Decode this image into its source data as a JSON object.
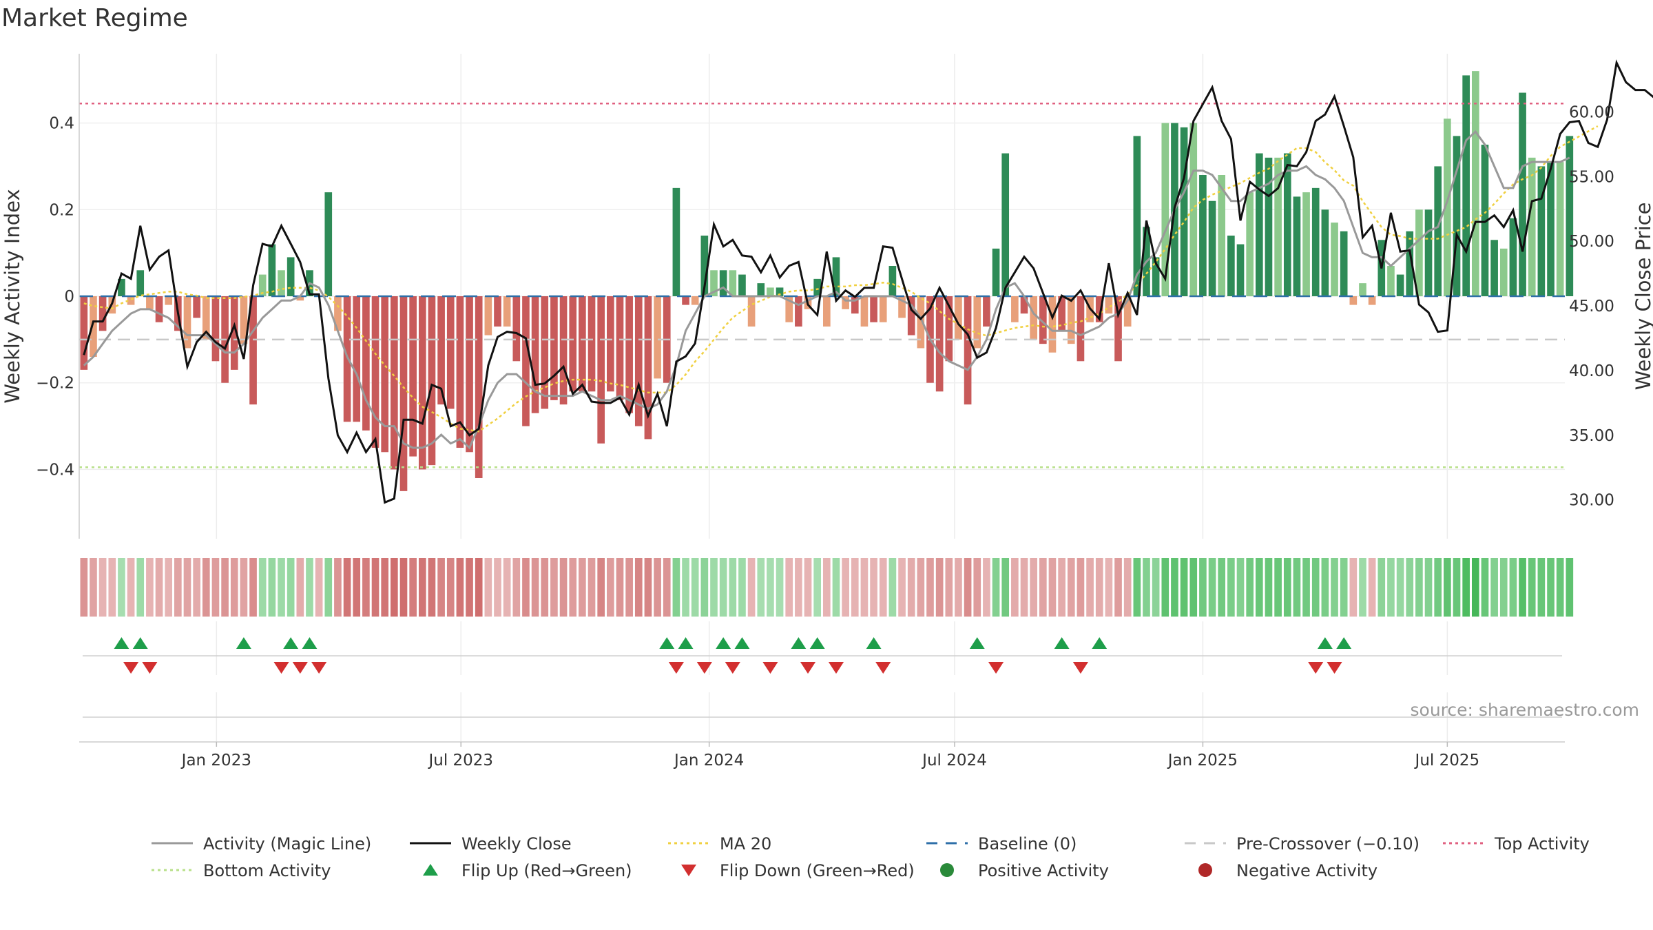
{
  "chart_data": {
    "type": "bar",
    "title": "Market Regime",
    "ylabel_left": "Weekly Activity Index",
    "ylabel_right": "Weekly Close Price",
    "ylim_left": [
      -0.56,
      0.56
    ],
    "ylim_right": [
      27.0,
      64.5
    ],
    "yticks_left": [
      0.4,
      0.2,
      0,
      -0.2,
      -0.4
    ],
    "yticks_left_labels": [
      "0.4",
      "0.2",
      "0",
      "−0.2",
      "−0.4"
    ],
    "yticks_right": [
      60,
      55,
      50,
      45,
      40,
      35,
      30
    ],
    "yticks_right_labels": [
      "60.00",
      "55.00",
      "50.00",
      "45.00",
      "40.00",
      "35.00",
      "30.00"
    ],
    "xlim_week": [
      0,
      158
    ],
    "x_tick_labels": [
      "Jan 2023",
      "Jul 2023",
      "Jan 2024",
      "Jul 2024",
      "Jan 2025",
      "Jul 2025"
    ],
    "x_tick_weeks": [
      14.6,
      40.6,
      67,
      93.1,
      119.5,
      145.5
    ],
    "reference_lines": {
      "baseline": 0,
      "pre_crossover": -0.1,
      "top_activity": 0.445,
      "bottom_activity": -0.395
    },
    "activity_index": [
      -0.17,
      -0.14,
      -0.08,
      -0.04,
      0.04,
      -0.02,
      0.06,
      -0.03,
      -0.06,
      -0.02,
      -0.08,
      -0.12,
      -0.05,
      -0.1,
      -0.15,
      -0.2,
      -0.17,
      -0.11,
      -0.25,
      0.05,
      0.12,
      0.06,
      0.09,
      -0.01,
      0.06,
      0.0,
      0.24,
      -0.08,
      -0.29,
      -0.29,
      -0.31,
      -0.35,
      -0.36,
      -0.4,
      -0.45,
      -0.37,
      -0.4,
      -0.39,
      -0.25,
      -0.26,
      -0.35,
      -0.36,
      -0.42,
      -0.09,
      -0.07,
      -0.07,
      -0.15,
      -0.3,
      -0.27,
      -0.26,
      -0.24,
      -0.25,
      -0.22,
      -0.22,
      -0.22,
      -0.34,
      -0.22,
      -0.24,
      -0.27,
      -0.3,
      -0.33,
      -0.19,
      -0.2,
      0.25,
      -0.02,
      -0.02,
      0.14,
      0.06,
      0.06,
      0.06,
      0.05,
      -0.07,
      0.03,
      0.02,
      0.02,
      -0.06,
      -0.07,
      -0.03,
      0.04,
      -0.07,
      0.09,
      -0.03,
      -0.04,
      -0.07,
      -0.06,
      -0.06,
      0.07,
      -0.05,
      -0.09,
      -0.12,
      -0.2,
      -0.22,
      -0.15,
      -0.1,
      -0.25,
      -0.12,
      -0.07,
      0.11,
      0.33,
      -0.06,
      -0.04,
      -0.1,
      -0.11,
      -0.13,
      -0.08,
      -0.11,
      -0.15,
      -0.06,
      -0.06,
      -0.04,
      -0.15,
      -0.07,
      0.37,
      0.16,
      0.09,
      0.4,
      0.4,
      0.39,
      0.4,
      0.28,
      0.22,
      0.28,
      0.14,
      0.12,
      0.24,
      0.33,
      0.32,
      0.32,
      0.33,
      0.23,
      0.24,
      0.25,
      0.2,
      0.17,
      0.15,
      -0.02,
      0.03,
      -0.02,
      0.13,
      0.07,
      0.05,
      0.15,
      0.2,
      0.2,
      0.3,
      0.41,
      0.37,
      0.51,
      0.52,
      0.35,
      0.13,
      0.11,
      0.18,
      0.47,
      0.32,
      0.3,
      0.31,
      0.31,
      0.37
    ],
    "weekly_close": [
      41.2,
      43.8,
      43.8,
      45.2,
      47.5,
      47.1,
      51.2,
      47.8,
      48.8,
      49.3,
      44.5,
      40.3,
      42.2,
      43.0,
      42.2,
      41.7,
      43.5,
      40.9,
      46.6,
      49.8,
      49.6,
      51.2,
      49.8,
      48.4,
      45.9,
      45.9,
      39.4,
      35.0,
      33.7,
      35.2,
      33.7,
      34.7,
      29.8,
      30.1,
      36.2,
      36.2,
      35.9,
      38.9,
      38.6,
      35.7,
      36.0,
      35.0,
      35.5,
      40.4,
      42.6,
      43.0,
      42.9,
      42.5,
      38.9,
      39.0,
      39.6,
      40.3,
      38.2,
      38.9,
      37.6,
      37.5,
      37.5,
      37.9,
      36.6,
      38.9,
      36.5,
      38.2,
      35.7,
      40.7,
      41.1,
      42.1,
      46.5,
      51.3,
      49.6,
      50.1,
      48.9,
      48.8,
      47.6,
      48.9,
      47.2,
      48.1,
      48.4,
      45.1,
      44.3,
      49.2,
      45.4,
      46.2,
      45.7,
      46.4,
      46.4,
      49.6,
      49.5,
      47.1,
      44.7,
      44.0,
      44.8,
      46.4,
      45.0,
      43.6,
      42.8,
      41.0,
      41.4,
      43.3,
      46.4,
      47.6,
      48.8,
      47.9,
      46.0,
      44.1,
      45.8,
      45.4,
      46.2,
      44.8,
      44.0,
      48.3,
      44.3,
      46.0,
      44.3,
      51.6,
      48.3,
      47.1,
      52.6,
      54.9,
      59.3,
      60.6,
      61.9,
      59.3,
      57.9,
      51.6,
      54.6,
      54.0,
      53.5,
      54.1,
      55.9,
      55.8,
      56.9,
      59.3,
      59.8,
      61.2,
      58.9,
      56.5,
      50.3,
      51.2,
      47.9,
      52.2,
      49.2,
      49.3,
      45.1,
      44.5,
      43.0,
      43.1,
      50.5,
      49.2,
      51.5,
      51.5,
      52.0,
      51.1,
      52.4,
      49.2,
      53.1,
      53.3,
      55.6,
      58.3,
      59.2,
      59.3,
      57.6,
      57.3,
      59.4,
      63.8,
      62.3,
      61.7,
      61.7,
      61.1,
      61.1,
      61.1
    ],
    "activity_magic_line": [
      -0.16,
      -0.14,
      -0.11,
      -0.08,
      -0.06,
      -0.04,
      -0.03,
      -0.03,
      -0.04,
      -0.05,
      -0.07,
      -0.09,
      -0.09,
      -0.09,
      -0.11,
      -0.13,
      -0.13,
      -0.11,
      -0.08,
      -0.05,
      -0.03,
      -0.01,
      -0.01,
      0.0,
      0.03,
      0.02,
      -0.02,
      -0.08,
      -0.14,
      -0.18,
      -0.24,
      -0.28,
      -0.3,
      -0.3,
      -0.34,
      -0.35,
      -0.35,
      -0.34,
      -0.32,
      -0.34,
      -0.33,
      -0.35,
      -0.3,
      -0.24,
      -0.2,
      -0.18,
      -0.18,
      -0.2,
      -0.22,
      -0.23,
      -0.23,
      -0.23,
      -0.23,
      -0.22,
      -0.23,
      -0.24,
      -0.24,
      -0.23,
      -0.24,
      -0.25,
      -0.26,
      -0.25,
      -0.22,
      -0.16,
      -0.08,
      -0.04,
      0.0,
      0.01,
      0.02,
      0.0,
      0.0,
      0.0,
      0.0,
      0.0,
      0.0,
      -0.01,
      -0.02,
      -0.01,
      0.0,
      0.0,
      0.01,
      -0.01,
      -0.01,
      0.0,
      0.0,
      0.0,
      0.0,
      -0.01,
      -0.02,
      -0.05,
      -0.1,
      -0.13,
      -0.15,
      -0.16,
      -0.17,
      -0.14,
      -0.1,
      -0.03,
      0.02,
      0.03,
      0.0,
      -0.04,
      -0.06,
      -0.08,
      -0.08,
      -0.08,
      -0.09,
      -0.08,
      -0.07,
      -0.05,
      -0.04,
      -0.01,
      0.05,
      0.08,
      0.1,
      0.15,
      0.2,
      0.24,
      0.29,
      0.29,
      0.28,
      0.25,
      0.22,
      0.22,
      0.24,
      0.25,
      0.26,
      0.28,
      0.29,
      0.29,
      0.3,
      0.28,
      0.27,
      0.25,
      0.22,
      0.16,
      0.1,
      0.09,
      0.09,
      0.07,
      0.09,
      0.11,
      0.13,
      0.15,
      0.16,
      0.22,
      0.29,
      0.36,
      0.38,
      0.35,
      0.3,
      0.25,
      0.25,
      0.3,
      0.31,
      0.31,
      0.31,
      0.31,
      0.32
    ],
    "ma_20": [
      45.2,
      45.0,
      44.9,
      44.8,
      45.2,
      45.5,
      45.8,
      45.9,
      46.0,
      46.1,
      46.1,
      45.9,
      45.8,
      45.6,
      45.6,
      45.6,
      45.6,
      45.7,
      45.8,
      46.0,
      46.1,
      46.3,
      46.4,
      46.4,
      46.4,
      46.2,
      45.7,
      45.0,
      44.2,
      43.3,
      42.3,
      41.3,
      40.4,
      39.6,
      38.7,
      37.9,
      37.2,
      36.8,
      36.4,
      35.9,
      35.5,
      35.4,
      35.3,
      35.8,
      36.3,
      36.9,
      37.5,
      38.0,
      38.4,
      38.7,
      39.0,
      39.2,
      39.3,
      39.3,
      39.3,
      39.2,
      39.0,
      38.9,
      38.7,
      38.5,
      38.3,
      38.3,
      38.3,
      38.9,
      39.7,
      40.7,
      41.5,
      42.4,
      43.3,
      44.1,
      44.6,
      45.1,
      45.4,
      45.7,
      45.9,
      46.1,
      46.2,
      46.2,
      46.3,
      46.5,
      46.5,
      46.5,
      46.6,
      46.6,
      46.7,
      46.8,
      46.7,
      46.4,
      46.1,
      45.6,
      45.2,
      44.6,
      44.0,
      43.6,
      43.2,
      42.9,
      42.7,
      42.9,
      43.1,
      43.3,
      43.4,
      43.5,
      43.4,
      43.4,
      43.5,
      43.7,
      43.8,
      44.1,
      44.4,
      44.9,
      45.3,
      45.9,
      46.6,
      47.5,
      48.4,
      49.4,
      50.5,
      51.5,
      52.6,
      53.2,
      53.6,
      53.9,
      54.2,
      54.5,
      54.9,
      55.3,
      55.6,
      56.2,
      56.7,
      57.2,
      57.2,
      56.9,
      56.1,
      55.5,
      54.7,
      54.3,
      53.1,
      52.1,
      51.1,
      50.5,
      50.4,
      50.2,
      50.2,
      50.2,
      50.2,
      50.5,
      50.8,
      51.1,
      51.7,
      52.2,
      52.9,
      53.7,
      54.4,
      54.8,
      55.1,
      55.7,
      56.6,
      57.3,
      57.7,
      58.1,
      58.5,
      58.9
    ],
    "regime_strip": [
      -0.5,
      -0.4,
      -0.3,
      -0.3,
      0.25,
      -0.3,
      0.3,
      -0.3,
      -0.35,
      -0.3,
      -0.4,
      -0.4,
      -0.35,
      -0.5,
      -0.45,
      -0.5,
      -0.45,
      -0.4,
      -0.55,
      0.3,
      0.35,
      0.3,
      0.35,
      -0.35,
      0.3,
      -0.3,
      0.4,
      -0.5,
      -0.7,
      -0.7,
      -0.65,
      -0.7,
      -0.7,
      -0.75,
      -0.75,
      -0.65,
      -0.7,
      -0.7,
      -0.6,
      -0.6,
      -0.7,
      -0.7,
      -0.75,
      -0.3,
      -0.3,
      -0.3,
      -0.4,
      -0.55,
      -0.5,
      -0.5,
      -0.45,
      -0.5,
      -0.45,
      -0.45,
      -0.45,
      -0.6,
      -0.45,
      -0.5,
      -0.5,
      -0.6,
      -0.6,
      -0.5,
      -0.5,
      0.45,
      0.3,
      0.3,
      0.4,
      0.3,
      0.3,
      0.3,
      0.3,
      -0.3,
      0.25,
      0.25,
      0.25,
      -0.3,
      -0.3,
      -0.3,
      0.25,
      -0.3,
      0.3,
      -0.3,
      -0.3,
      -0.3,
      -0.3,
      -0.3,
      0.3,
      -0.3,
      -0.35,
      -0.4,
      -0.45,
      -0.5,
      -0.4,
      -0.35,
      -0.55,
      -0.45,
      -0.3,
      0.45,
      0.55,
      -0.35,
      -0.35,
      -0.35,
      -0.4,
      -0.4,
      -0.35,
      -0.4,
      -0.45,
      -0.35,
      -0.35,
      -0.3,
      -0.45,
      -0.35,
      0.6,
      0.45,
      0.4,
      0.65,
      0.65,
      0.65,
      0.65,
      0.55,
      0.5,
      0.55,
      0.5,
      0.45,
      0.55,
      0.6,
      0.6,
      0.6,
      0.6,
      0.55,
      0.55,
      0.55,
      0.5,
      0.45,
      0.45,
      -0.3,
      0.3,
      -0.3,
      0.4,
      0.35,
      0.35,
      0.4,
      0.45,
      0.45,
      0.55,
      0.65,
      0.6,
      0.75,
      0.8,
      0.6,
      0.45,
      0.45,
      0.5,
      0.7,
      0.6,
      0.6,
      0.6,
      0.6,
      0.65
    ],
    "flip_up_weeks": [
      4,
      6,
      17,
      22,
      24,
      62,
      64,
      68,
      70,
      76,
      78,
      84,
      95,
      104,
      108,
      132,
      134
    ],
    "flip_down_weeks": [
      5,
      7,
      21,
      23,
      25,
      63,
      66,
      69,
      73,
      77,
      80,
      85,
      97,
      106,
      131,
      133
    ],
    "annotations": [
      {
        "text": "source: sharemaestro.com"
      }
    ],
    "legend": {
      "placement": "bottom",
      "items": [
        {
          "label": "Activity (Magic Line)",
          "kind": "line",
          "color": "#999999"
        },
        {
          "label": "Weekly Close",
          "kind": "line",
          "color": "#111111"
        },
        {
          "label": "MA 20",
          "kind": "dotted",
          "color": "#f0d040"
        },
        {
          "label": "Baseline (0)",
          "kind": "dashed",
          "color": "#2e6fa8"
        },
        {
          "label": "Pre-Crossover (−0.10)",
          "kind": "dashed",
          "color": "#c8c8c8"
        },
        {
          "label": "Top Activity",
          "kind": "dotted",
          "color": "#e06080"
        },
        {
          "label": "Bottom Activity",
          "kind": "dotted",
          "color": "#b8e08a"
        },
        {
          "label": "Flip Up (Red→Green)",
          "kind": "triangle-up",
          "color": "#1e9e4a"
        },
        {
          "label": "Flip Down (Green→Red)",
          "kind": "triangle-down",
          "color": "#d22f2f"
        },
        {
          "label": "Positive Activity",
          "kind": "circle",
          "color": "#2a8a3a"
        },
        {
          "label": "Negative Activity",
          "kind": "circle",
          "color": "#b02828"
        }
      ]
    },
    "colors": {
      "pos_dark": "#2e8b57",
      "pos_light": "#8cc98c",
      "neg_dark": "#c85a5a",
      "neg_light": "#e8a07a"
    }
  }
}
